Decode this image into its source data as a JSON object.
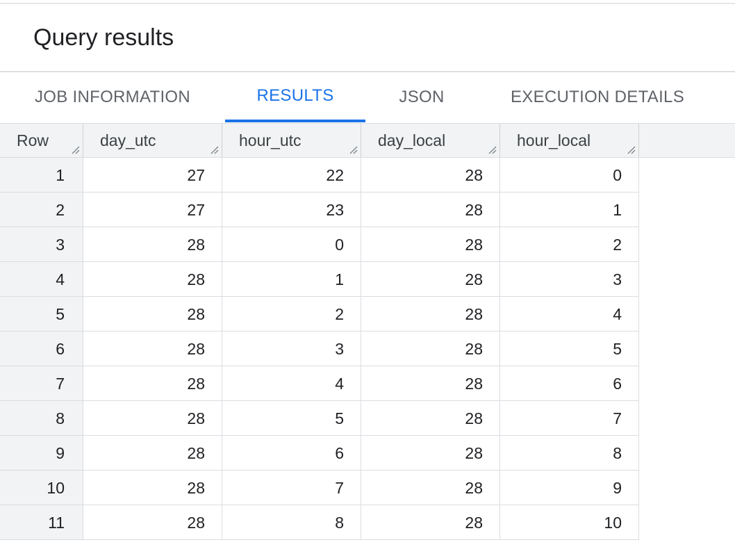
{
  "panel": {
    "title": "Query results"
  },
  "tabs": [
    {
      "label": "JOB INFORMATION",
      "active": false
    },
    {
      "label": "RESULTS",
      "active": true
    },
    {
      "label": "JSON",
      "active": false
    },
    {
      "label": "EXECUTION DETAILS",
      "active": false
    }
  ],
  "colors": {
    "accent": "#1a73e8",
    "header_bg": "#f1f3f4",
    "text": "#202124"
  },
  "table": {
    "columns": [
      "Row",
      "day_utc",
      "hour_utc",
      "day_local",
      "hour_local"
    ],
    "rows": [
      [
        "1",
        "27",
        "22",
        "28",
        "0"
      ],
      [
        "2",
        "27",
        "23",
        "28",
        "1"
      ],
      [
        "3",
        "28",
        "0",
        "28",
        "2"
      ],
      [
        "4",
        "28",
        "1",
        "28",
        "3"
      ],
      [
        "5",
        "28",
        "2",
        "28",
        "4"
      ],
      [
        "6",
        "28",
        "3",
        "28",
        "5"
      ],
      [
        "7",
        "28",
        "4",
        "28",
        "6"
      ],
      [
        "8",
        "28",
        "5",
        "28",
        "7"
      ],
      [
        "9",
        "28",
        "6",
        "28",
        "8"
      ],
      [
        "10",
        "28",
        "7",
        "28",
        "9"
      ],
      [
        "11",
        "28",
        "8",
        "28",
        "10"
      ]
    ]
  }
}
